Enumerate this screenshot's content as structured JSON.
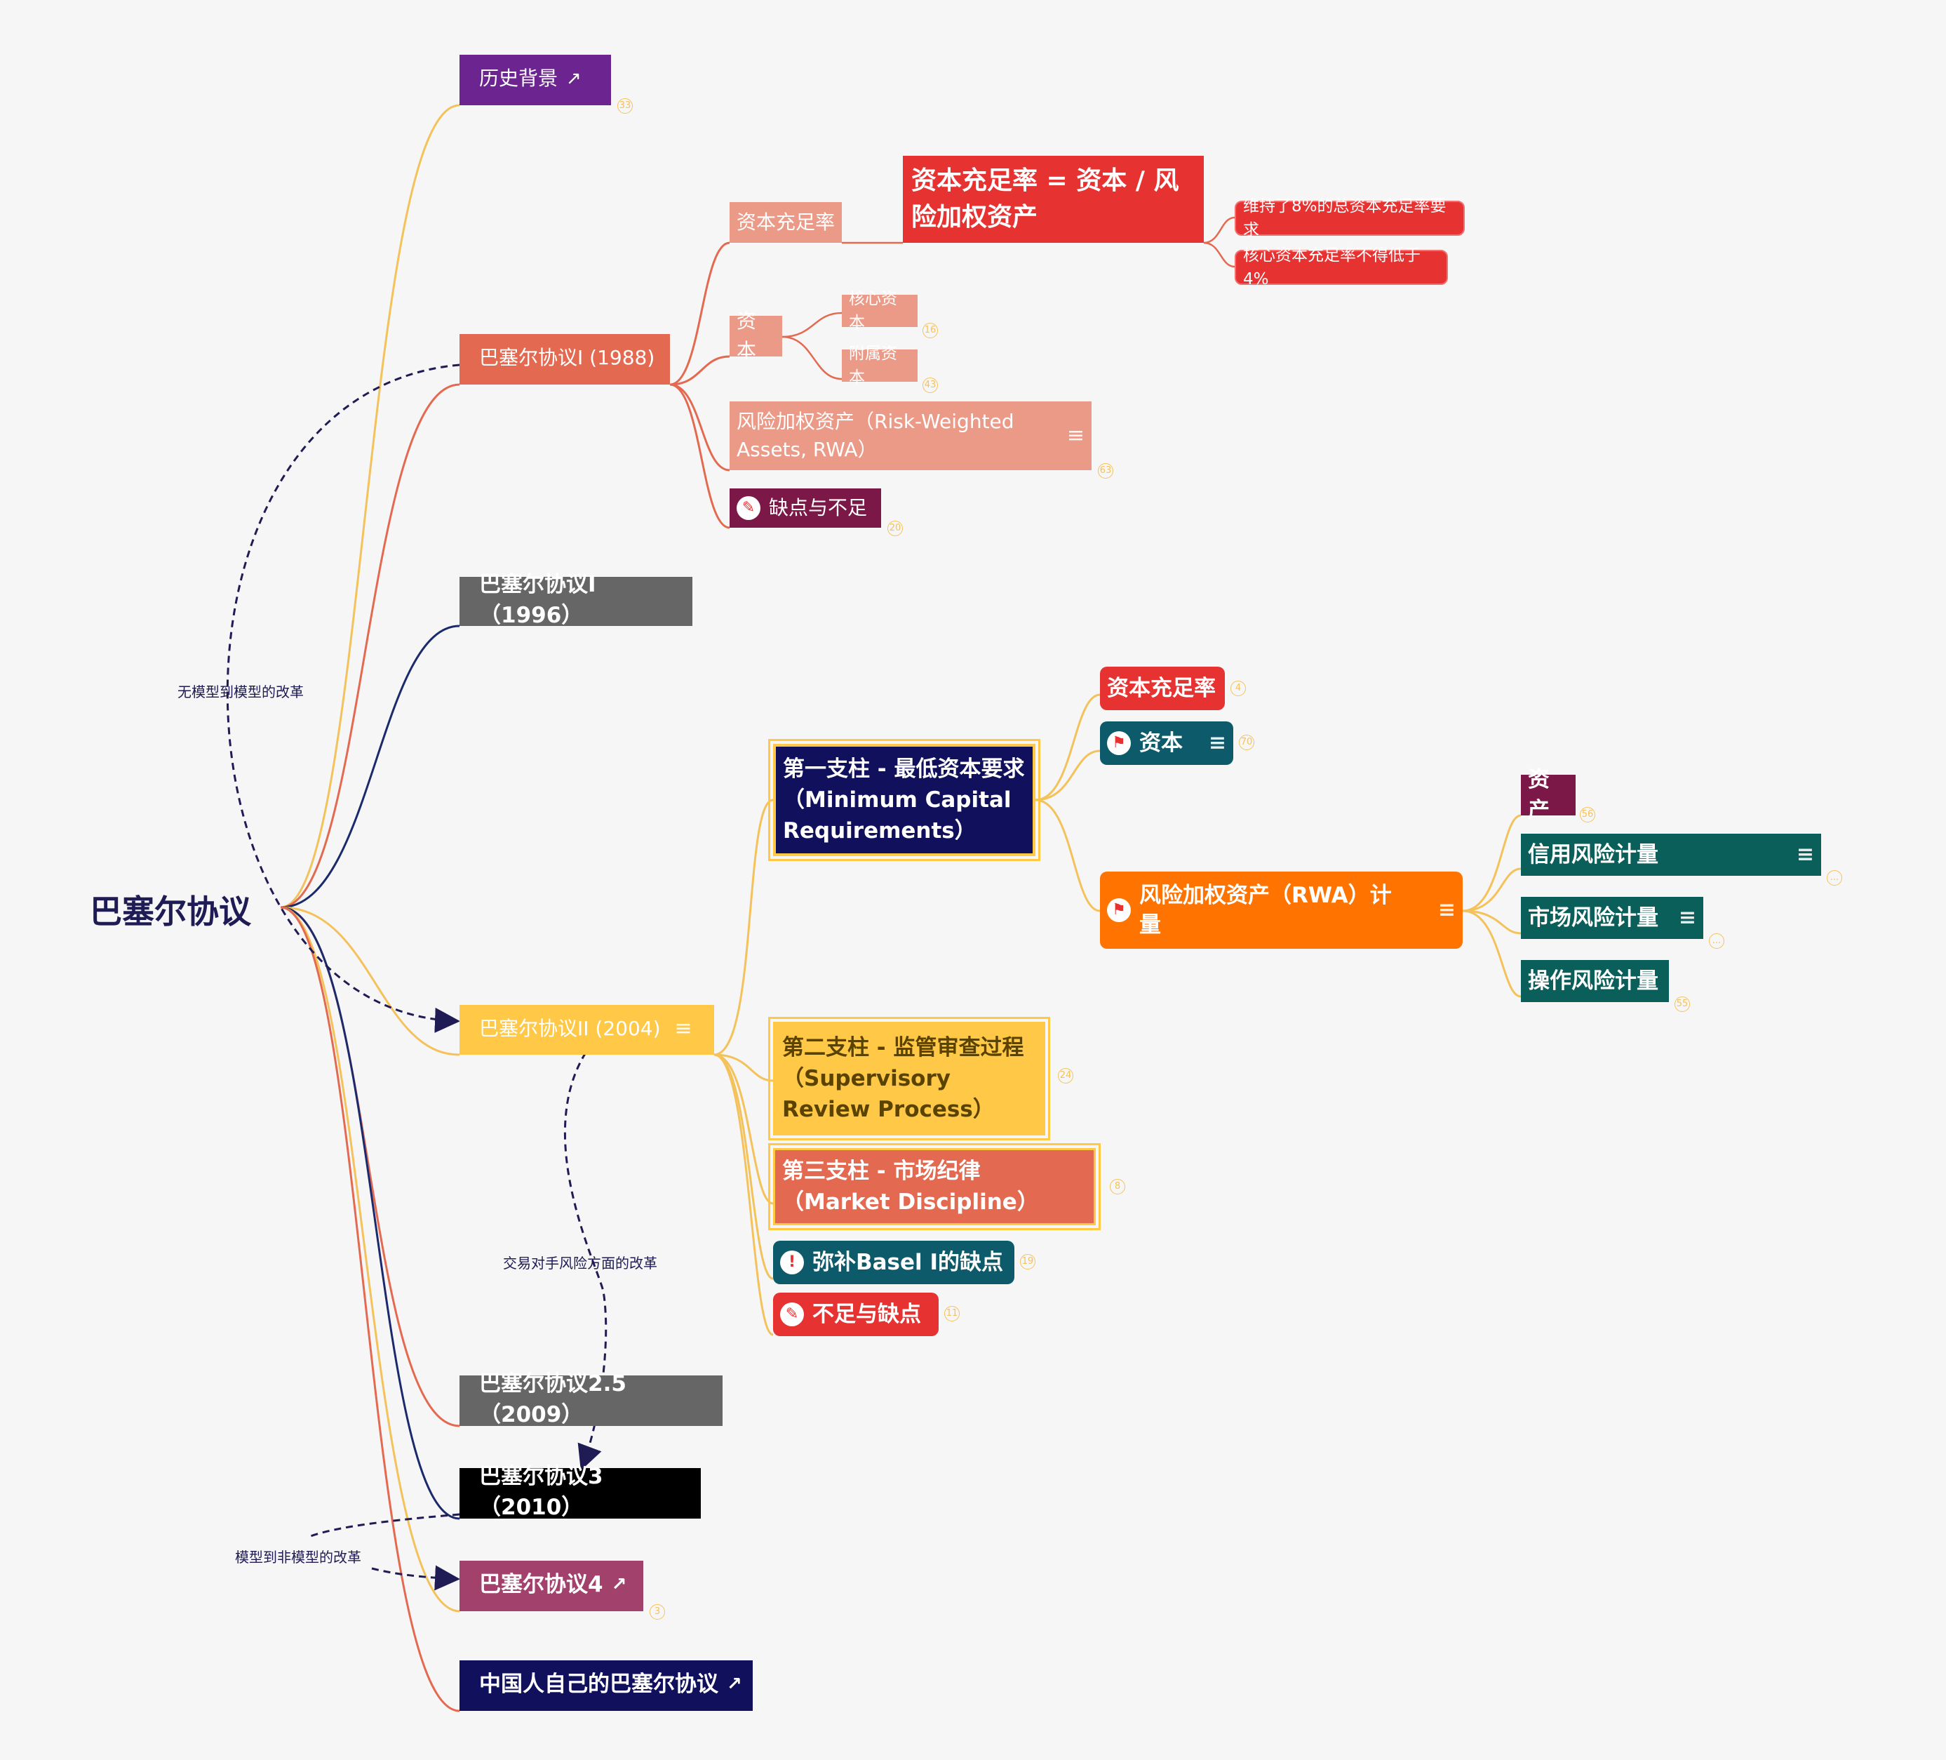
{
  "root": "巴塞尔协议",
  "relations": [
    "无模型到模型的改革",
    "交易对手风险方面的改革",
    "模型到非模型的改革"
  ],
  "colors": {
    "purple": "#6b2490",
    "coral": "#e36a50",
    "salmon": "#ec9a88",
    "red": "#e73232",
    "plum": "#7b1847",
    "grey": "#666666",
    "navy": "#10105c",
    "teal": "#0d5a6a",
    "darkgreen": "#0b5f5a",
    "orange": "#ff7300",
    "yellow": "#ffc846",
    "black": "#000000",
    "pink": "#a3416d"
  },
  "nodes": {
    "history": "历史背景",
    "basel1": "巴塞尔协议I (1988)",
    "b1_car": "资本充足率",
    "b1_formula": "资本充足率 = 资本 / 风险加权资产",
    "b1_req8": "维持了8%的总资本充足率要求",
    "b1_req4": "核心资本充足率不得低于4%",
    "b1_capital": "资本",
    "b1_core": "核心资本",
    "b1_supp": "附属资本",
    "b1_rwa": "风险加权资产（Risk-Weighted Assets, RWA）",
    "b1_defects": "缺点与不足",
    "basel1_1996": "巴塞尔协议I（1996）",
    "basel2": "巴塞尔协议II (2004)",
    "p1": "第一支柱 - 最低资本要求（Minimum Capital Requirements）",
    "p1_car": "资本充足率",
    "p1_capital": "资本",
    "p1_rwa": "风险加权资产（RWA）计量",
    "p1_assets": "资产",
    "p1_credit": "信用风险计量",
    "p1_market": "市场风险计量",
    "p1_oper": "操作风险计量",
    "p2": "第二支柱 - 监管审查过程（Supervisory Review Process）",
    "p3": "第三支柱 - 市场纪律（Market Discipline）",
    "b2_fix": "弥补Basel I的缺点",
    "b2_defects": "不足与缺点",
    "basel25": "巴塞尔协议2.5（2009）",
    "basel3": "巴塞尔协议3（2010）",
    "basel4": "巴塞尔协议4",
    "chinese": "中国人自己的巴塞尔协议"
  },
  "badges": {
    "history": "33",
    "b1_core": "16",
    "b1_supp": "43",
    "b1_rwa": "63",
    "b1_defects": "20",
    "p1_car": "4",
    "p1_capital": "70",
    "p1_assets": "56",
    "p1_credit": "...",
    "p1_market": "...",
    "p1_oper": "55",
    "p2": "24",
    "p3": "8",
    "b2_fix": "19",
    "b2_defects": "11",
    "basel4": "3"
  },
  "icons": {
    "external": "external-link-icon",
    "notes": "notes-icon",
    "pin": "pin-icon",
    "flag": "flag-icon",
    "alert": "exclamation-icon"
  }
}
